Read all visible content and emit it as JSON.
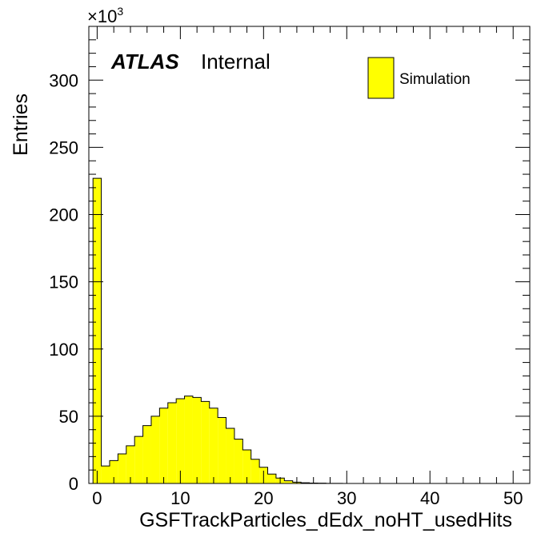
{
  "chart_data": {
    "type": "bar",
    "xlabel": "GSFTrackParticles_dEdx_noHT_usedHits",
    "ylabel": "Entries",
    "y_multiplier": "×10",
    "y_multiplier_exponent": "3",
    "experiment_label": "ATLAS",
    "status_label": "Internal",
    "xlim": [
      -1,
      52
    ],
    "ylim": [
      0,
      340
    ],
    "x_ticks": [
      0,
      10,
      20,
      30,
      40,
      50
    ],
    "y_ticks": [
      0,
      50,
      100,
      150,
      200,
      250,
      300
    ],
    "bin_width": 1,
    "bin_start": -0.5,
    "series": [
      {
        "name": "Simulation",
        "color": "#ffff00",
        "values": [
          227,
          13,
          17,
          22,
          28,
          35,
          43,
          50,
          56,
          60,
          63,
          65,
          64,
          61,
          56,
          49,
          41,
          33,
          25,
          18,
          12,
          7,
          4,
          2,
          1,
          0.5,
          0.3,
          0.2,
          0.1,
          0.1,
          0,
          0,
          0,
          0,
          0,
          0,
          0,
          0,
          0,
          0,
          0,
          0,
          0,
          0,
          0,
          0,
          0,
          0,
          0,
          0,
          0,
          0
        ]
      }
    ]
  }
}
